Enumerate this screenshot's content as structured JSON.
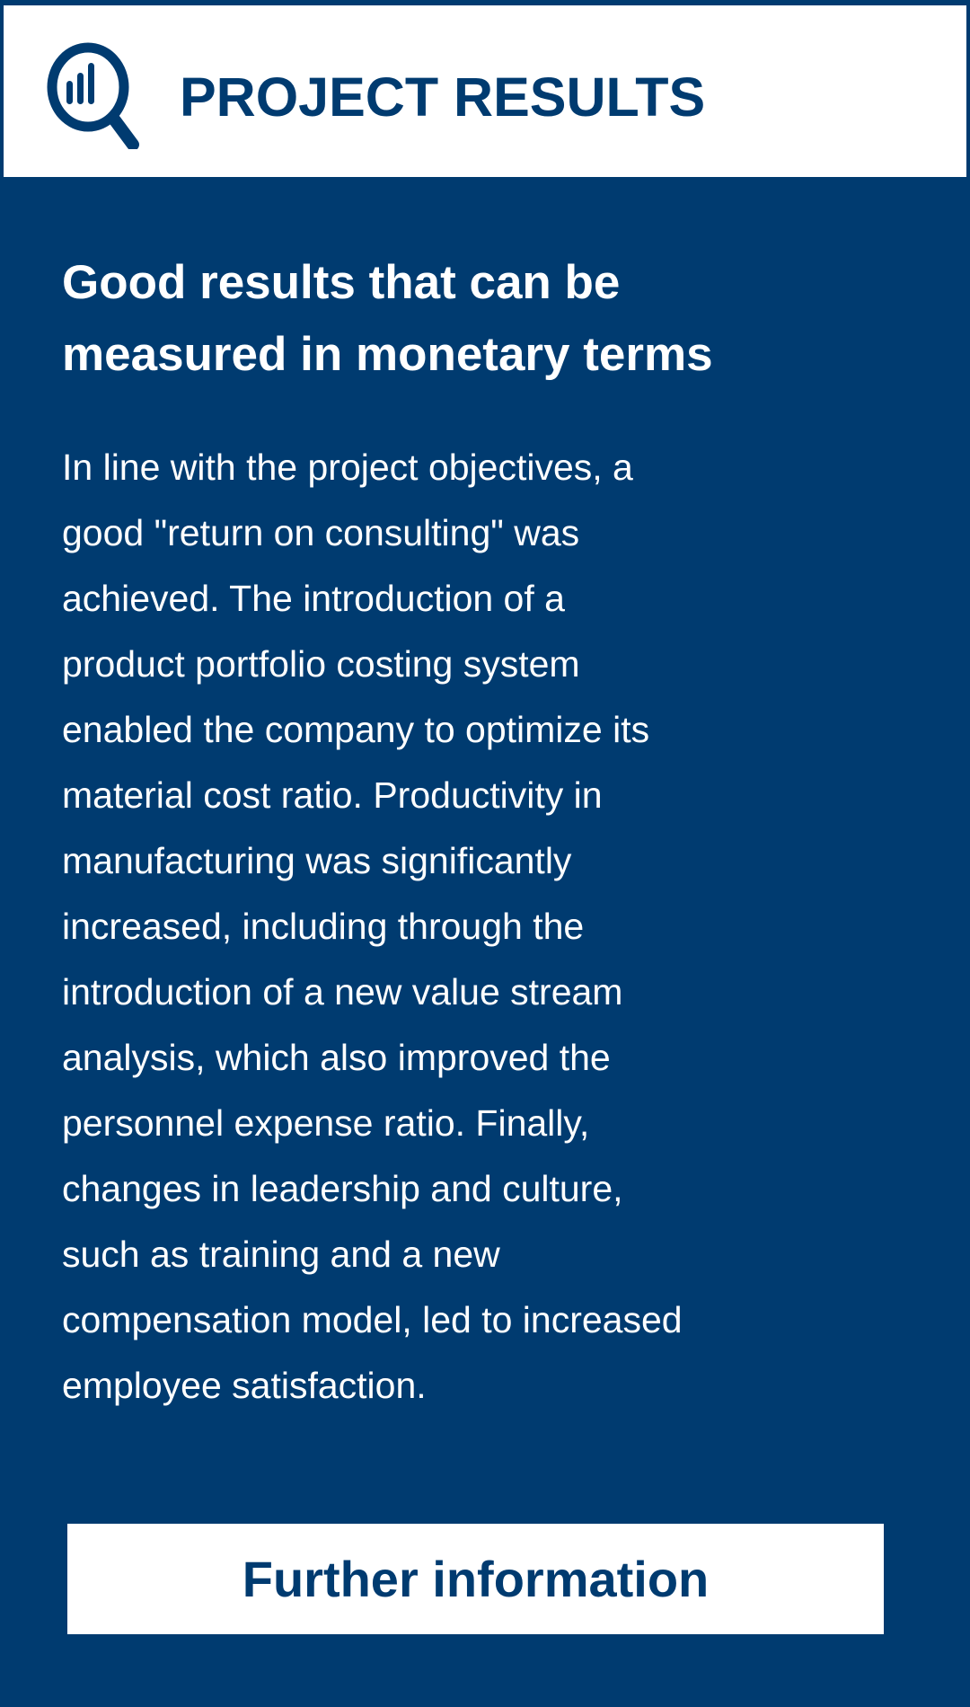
{
  "header": {
    "title": "PROJECT RESULTS",
    "icon": "magnifier-bar-chart-icon"
  },
  "main": {
    "heading_lines": [
      "Good results that can be",
      "measured in monetary terms"
    ],
    "body_lines": [
      "In line with the project objectives, a",
      "good \"return on consulting\" was",
      "achieved. The introduction of a",
      "product portfolio costing system",
      "enabled the company to optimize its",
      "material cost ratio. Productivity in",
      "manufacturing was significantly",
      "increased, including through the",
      "introduction of a new value stream",
      "analysis, which also improved the",
      "personnel expense ratio. Finally,",
      "changes in leadership and culture,",
      "such as training and a new",
      "compensation model, led to increased",
      "employee satisfaction."
    ],
    "button_label": "Further information"
  },
  "colors": {
    "navy": "#003b70",
    "white": "#ffffff"
  }
}
